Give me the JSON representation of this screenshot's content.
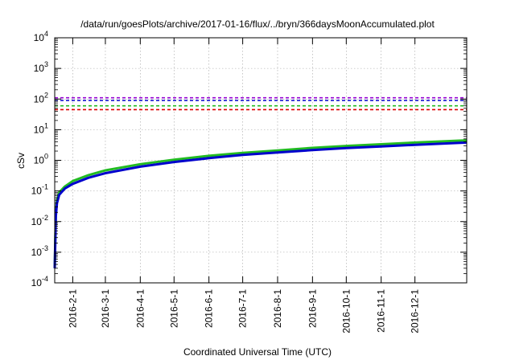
{
  "chart_data": {
    "type": "line",
    "title": "/data/run/goesPlots/archive/2017-01-16/flux/../bryn/366daysMoonAccumulated.plot",
    "xlabel": "Coordinated Universal Time (UTC)",
    "ylabel": "cSv",
    "yscale": "log",
    "ylim": [
      0.0001,
      10000
    ],
    "xlim": [
      "2016-01-16",
      "2017-01-16"
    ],
    "grid": true,
    "y_ticks": [
      {
        "value": 0.0001,
        "base": "10",
        "exp": "-4"
      },
      {
        "value": 0.001,
        "base": "10",
        "exp": "-3"
      },
      {
        "value": 0.01,
        "base": "10",
        "exp": "-2"
      },
      {
        "value": 0.1,
        "base": "10",
        "exp": "-1"
      },
      {
        "value": 1,
        "base": "10",
        "exp": "0"
      },
      {
        "value": 10,
        "base": "10",
        "exp": "1"
      },
      {
        "value": 100,
        "base": "10",
        "exp": "2"
      },
      {
        "value": 1000,
        "base": "10",
        "exp": "3"
      },
      {
        "value": 10000,
        "base": "10",
        "exp": "4"
      }
    ],
    "x_ticks": [
      {
        "date": "2016-02-01",
        "label": "2016-2-1"
      },
      {
        "date": "2016-03-01",
        "label": "2016-3-1"
      },
      {
        "date": "2016-04-01",
        "label": "2016-4-1"
      },
      {
        "date": "2016-05-01",
        "label": "2016-5-1"
      },
      {
        "date": "2016-06-01",
        "label": "2016-6-1"
      },
      {
        "date": "2016-07-01",
        "label": "2016-7-1"
      },
      {
        "date": "2016-08-01",
        "label": "2016-8-1"
      },
      {
        "date": "2016-09-01",
        "label": "2016-9-1"
      },
      {
        "date": "2016-10-01",
        "label": "2016-10-1"
      },
      {
        "date": "2016-11-01",
        "label": "2016-11-1"
      },
      {
        "date": "2016-12-01",
        "label": "2016-12-1"
      }
    ],
    "reference_lines": [
      {
        "value": 110,
        "color": "#9400d3",
        "style": "dashed"
      },
      {
        "value": 90,
        "color": "#0000cc",
        "style": "dashed"
      },
      {
        "value": 60,
        "color": "#22bb22",
        "style": "dashed"
      },
      {
        "value": 45,
        "color": "#dd0000",
        "style": "dashed"
      }
    ],
    "series": [
      {
        "color": "#22bb22",
        "points": [
          [
            "2016-01-16",
            0.0003
          ],
          [
            "2016-01-17",
            0.02
          ],
          [
            "2016-01-18",
            0.05
          ],
          [
            "2016-01-20",
            0.09
          ],
          [
            "2016-01-25",
            0.14
          ],
          [
            "2016-02-01",
            0.21
          ],
          [
            "2016-02-15",
            0.33
          ],
          [
            "2016-03-01",
            0.47
          ],
          [
            "2016-04-01",
            0.75
          ],
          [
            "2016-05-01",
            1.05
          ],
          [
            "2016-06-01",
            1.4
          ],
          [
            "2016-07-01",
            1.75
          ],
          [
            "2016-08-01",
            2.1
          ],
          [
            "2016-09-01",
            2.55
          ],
          [
            "2016-10-01",
            2.95
          ],
          [
            "2016-11-01",
            3.35
          ],
          [
            "2016-12-01",
            3.8
          ],
          [
            "2017-01-16",
            4.5
          ]
        ]
      },
      {
        "color": "#0000cc",
        "points": [
          [
            "2016-01-16",
            0.0003
          ],
          [
            "2016-01-17",
            0.015
          ],
          [
            "2016-01-18",
            0.04
          ],
          [
            "2016-01-20",
            0.075
          ],
          [
            "2016-01-25",
            0.12
          ],
          [
            "2016-02-01",
            0.17
          ],
          [
            "2016-02-15",
            0.27
          ],
          [
            "2016-03-01",
            0.38
          ],
          [
            "2016-04-01",
            0.62
          ],
          [
            "2016-05-01",
            0.88
          ],
          [
            "2016-06-01",
            1.18
          ],
          [
            "2016-07-01",
            1.5
          ],
          [
            "2016-08-01",
            1.8
          ],
          [
            "2016-09-01",
            2.15
          ],
          [
            "2016-10-01",
            2.5
          ],
          [
            "2016-11-01",
            2.85
          ],
          [
            "2016-12-01",
            3.2
          ],
          [
            "2017-01-16",
            3.8
          ]
        ]
      }
    ]
  }
}
